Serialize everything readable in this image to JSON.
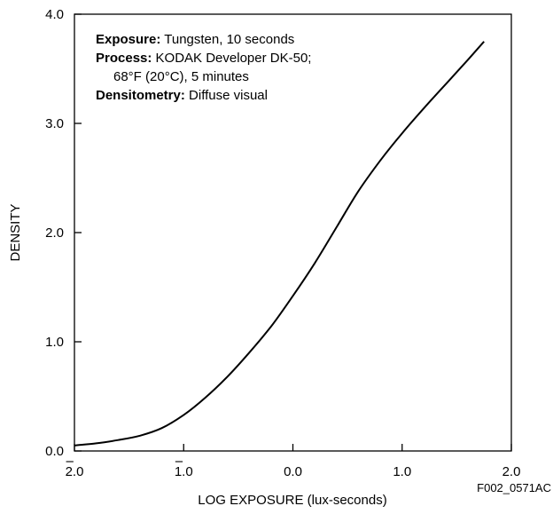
{
  "chart_data": {
    "type": "line",
    "title": "",
    "xlabel": "LOG EXPOSURE (lux-seconds)",
    "ylabel": "DENSITY",
    "xlim": [
      -2.0,
      2.0
    ],
    "ylim": [
      0.0,
      4.0
    ],
    "grid": false,
    "x_ticks": [
      {
        "value": -2.0,
        "label": "2.0",
        "bar": true
      },
      {
        "value": -1.0,
        "label": "1.0",
        "bar": true
      },
      {
        "value": 0.0,
        "label": "0.0",
        "bar": false
      },
      {
        "value": 1.0,
        "label": "1.0",
        "bar": false
      },
      {
        "value": 2.0,
        "label": "2.0",
        "bar": false
      }
    ],
    "y_ticks": [
      {
        "value": 0.0,
        "label": "0.0"
      },
      {
        "value": 1.0,
        "label": "1.0"
      },
      {
        "value": 2.0,
        "label": "2.0"
      },
      {
        "value": 3.0,
        "label": "3.0"
      },
      {
        "value": 4.0,
        "label": "4.0"
      }
    ],
    "annotations": [
      {
        "bold": "Exposure:",
        "text": " Tungsten, 10 seconds"
      },
      {
        "bold": "Process:",
        "text": " KODAK Developer DK-50;"
      },
      {
        "bold": "",
        "text": "68°F (20°C), 5 minutes",
        "indent": true
      },
      {
        "bold": "Densitometry:",
        "text": "  Diffuse visual"
      }
    ],
    "figure_id": "F002_0571AC",
    "series": [
      {
        "x": [
          -2.0,
          -1.8,
          -1.6,
          -1.4,
          -1.2,
          -1.0,
          -0.8,
          -0.6,
          -0.4,
          -0.2,
          0.0,
          0.2,
          0.4,
          0.6,
          0.8,
          1.0,
          1.2,
          1.4,
          1.6,
          1.75
        ],
        "y": [
          0.05,
          0.07,
          0.1,
          0.14,
          0.21,
          0.33,
          0.49,
          0.68,
          0.9,
          1.14,
          1.42,
          1.72,
          2.05,
          2.38,
          2.66,
          2.91,
          3.14,
          3.36,
          3.58,
          3.75
        ]
      }
    ]
  }
}
